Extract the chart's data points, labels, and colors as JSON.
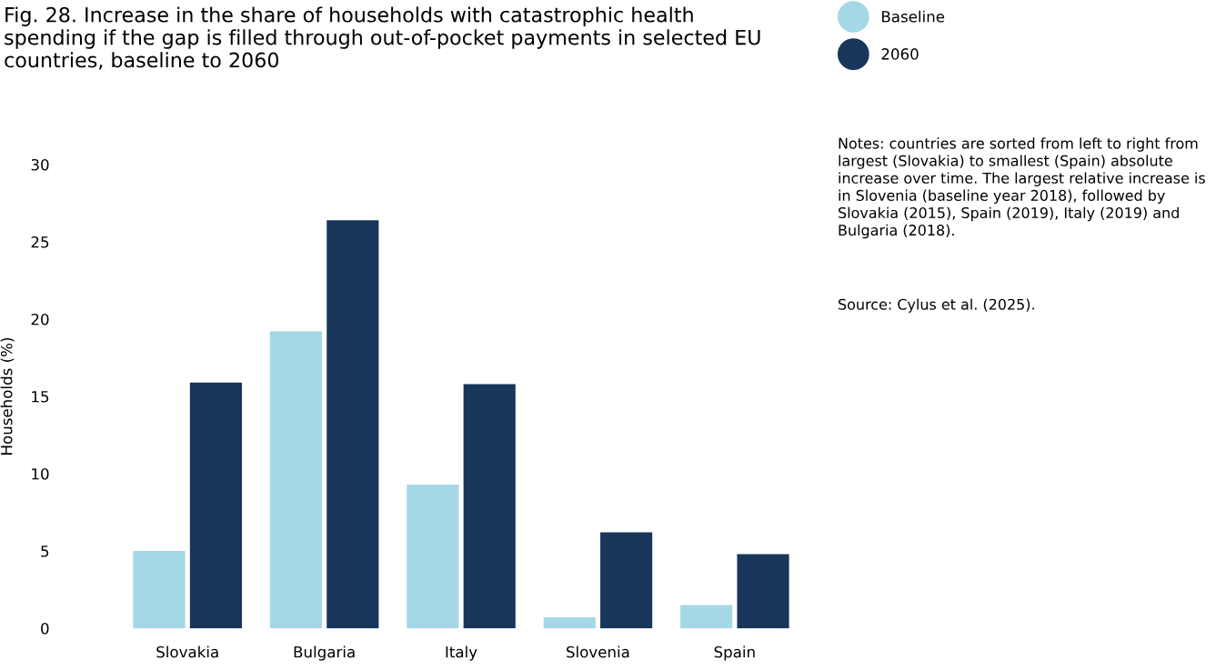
{
  "chart_data": {
    "type": "bar",
    "title": "Fig. 28. Increase in the share of households with catastrophic health spending if the gap is filled through out-of-pocket payments in selected EU countries, baseline to 2060",
    "ylabel": "Households (%)",
    "categories": [
      "Slovakia",
      "Bulgaria",
      "Italy",
      "Slovenia",
      "Spain"
    ],
    "series": [
      {
        "name": "Baseline",
        "color": "#a4d8e6",
        "values": [
          5.0,
          19.2,
          9.3,
          0.7,
          1.5
        ]
      },
      {
        "name": "2060",
        "color": "#17365a",
        "values": [
          15.9,
          26.4,
          15.8,
          6.2,
          4.8
        ]
      }
    ],
    "ylim": [
      0,
      30
    ],
    "yticks": [
      0,
      5,
      10,
      15,
      20,
      25,
      30
    ],
    "grid": false,
    "legend": "top right",
    "annotations": [
      "Notes: countries are sorted from left to right from largest (Slovakia) to smallest (Spain) absolute increase over time. The largest relative increase is in Slovenia (baseline year 2018), followed by Slovakia (2015), Spain (2019), Italy (2019) and Bulgaria (2018).",
      "Source: Cylus et al. (2025)."
    ]
  }
}
